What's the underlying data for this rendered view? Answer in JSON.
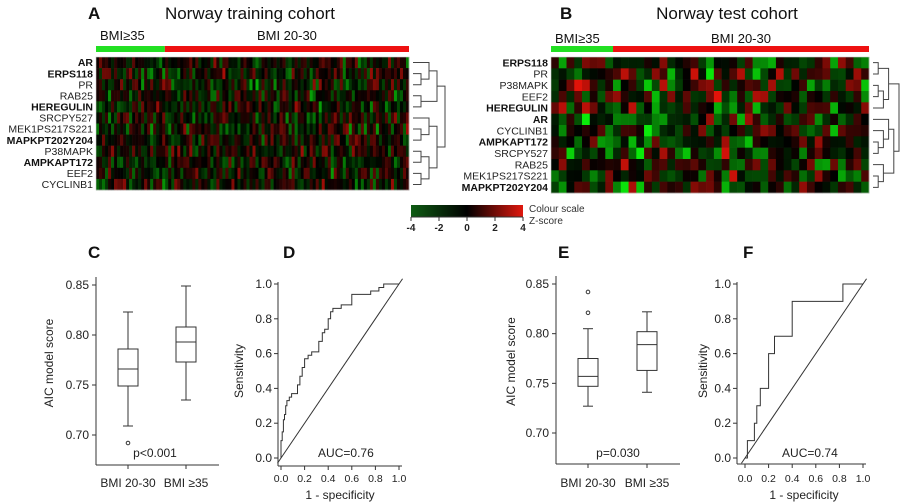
{
  "panels": {
    "A": {
      "letter": "A",
      "title": "Norway training cohort"
    },
    "B": {
      "letter": "B",
      "title": "Norway test cohort"
    },
    "C": {
      "letter": "C"
    },
    "D": {
      "letter": "D"
    },
    "E": {
      "letter": "E"
    },
    "F": {
      "letter": "F"
    }
  },
  "colour_scale": {
    "title": "Colour scale",
    "subtitle": "Z-score",
    "ticks": [
      "-4",
      "-2",
      "0",
      "2",
      "4"
    ],
    "range": [
      -4,
      4
    ],
    "low_color": "#0f5c14",
    "mid_color": "#000000",
    "high_color": "#e0180e"
  },
  "chart_data": [
    {
      "type": "heatmap",
      "panel": "A",
      "groups": [
        {
          "label": "BMI≥35",
          "color": "#22e022",
          "fraction": 0.22
        },
        {
          "label": "BMI 20-30",
          "color": "#ee1111",
          "fraction": 0.78
        }
      ],
      "rows": [
        {
          "label": "AR",
          "bold": true
        },
        {
          "label": "ERPS118",
          "bold": true
        },
        {
          "label": "PR",
          "bold": false
        },
        {
          "label": "RAB25",
          "bold": false
        },
        {
          "label": "HEREGULIN",
          "bold": true
        },
        {
          "label": "SRCPY527",
          "bold": false
        },
        {
          "label": "MEK1PS217S221",
          "bold": false
        },
        {
          "label": "MAPKPT202Y204",
          "bold": true
        },
        {
          "label": "P38MAPK",
          "bold": false
        },
        {
          "label": "AMPKAPT172",
          "bold": true
        },
        {
          "label": "EEF2",
          "bold": false
        },
        {
          "label": "CYCLINB1",
          "bold": false
        }
      ],
      "row_dendrogram": [
        [
          [
            0,
            [
              1,
              2
            ]
          ],
          [
            3,
            4
          ]
        ],
        [
          [
            5,
            [
              6,
              7
            ]
          ],
          [
            [
              8,
              9
            ],
            [
              10,
              11
            ]
          ]
        ]
      ]
    },
    {
      "type": "heatmap",
      "panel": "B",
      "groups": [
        {
          "label": "BMI≥35",
          "color": "#22e022",
          "fraction": 0.195
        },
        {
          "label": "BMI 20-30",
          "color": "#ee1111",
          "fraction": 0.805
        }
      ],
      "rows": [
        {
          "label": "ERPS118",
          "bold": true
        },
        {
          "label": "PR",
          "bold": false
        },
        {
          "label": "P38MAPK",
          "bold": false
        },
        {
          "label": "EEF2",
          "bold": false
        },
        {
          "label": "HEREGULIN",
          "bold": true
        },
        {
          "label": "AR",
          "bold": true
        },
        {
          "label": "CYCLINB1",
          "bold": false
        },
        {
          "label": "AMPKAPT172",
          "bold": true
        },
        {
          "label": "SRCPY527",
          "bold": false
        },
        {
          "label": "RAB25",
          "bold": false
        },
        {
          "label": "MEK1PS217S221",
          "bold": false
        },
        {
          "label": "MAPKPT202Y204",
          "bold": true
        }
      ],
      "row_dendrogram": [
        [
          [
            0,
            1
          ],
          [
            [
              2,
              3
            ],
            4
          ]
        ],
        [
          [
            5,
            [
              6,
              [
                7,
                8
              ]
            ]
          ],
          [
            9,
            [
              10,
              11
            ]
          ]
        ]
      ]
    },
    {
      "type": "box",
      "panel": "C",
      "ylabel": "AIC model score",
      "ylim": [
        0.67,
        0.855
      ],
      "yticks": [
        "0.70",
        "0.75",
        "0.80",
        "0.85"
      ],
      "annotation": "p<0.001",
      "groups": [
        {
          "label": "BMI 20-30",
          "min": 0.709,
          "q1": 0.749,
          "median": 0.766,
          "q3": 0.786,
          "max": 0.823,
          "outliers": [
            0.692
          ]
        },
        {
          "label": "BMI ≥35",
          "min": 0.735,
          "q1": 0.773,
          "median": 0.793,
          "q3": 0.808,
          "max": 0.849,
          "outliers": []
        }
      ]
    },
    {
      "type": "line",
      "panel": "D",
      "xlabel": "1 - specificity",
      "ylabel": "Sensitivity",
      "xlim": [
        0,
        1
      ],
      "ylim": [
        0,
        1
      ],
      "xticks": [
        "0.0",
        "0.2",
        "0.4",
        "0.6",
        "0.8",
        "1.0"
      ],
      "yticks": [
        "0.0",
        "0.2",
        "0.4",
        "0.6",
        "0.8",
        "1.0"
      ],
      "annotation": "AUC=0.76",
      "reference_diagonal": true,
      "roc": [
        [
          0,
          0
        ],
        [
          0,
          0.1
        ],
        [
          0.01,
          0.1
        ],
        [
          0.01,
          0.15
        ],
        [
          0.02,
          0.15
        ],
        [
          0.02,
          0.22
        ],
        [
          0.03,
          0.22
        ],
        [
          0.03,
          0.25
        ],
        [
          0.04,
          0.25
        ],
        [
          0.04,
          0.3
        ],
        [
          0.05,
          0.3
        ],
        [
          0.05,
          0.33
        ],
        [
          0.07,
          0.33
        ],
        [
          0.07,
          0.35
        ],
        [
          0.09,
          0.35
        ],
        [
          0.09,
          0.37
        ],
        [
          0.14,
          0.37
        ],
        [
          0.14,
          0.42
        ],
        [
          0.16,
          0.42
        ],
        [
          0.16,
          0.47
        ],
        [
          0.18,
          0.47
        ],
        [
          0.18,
          0.52
        ],
        [
          0.2,
          0.52
        ],
        [
          0.2,
          0.57
        ],
        [
          0.23,
          0.57
        ],
        [
          0.23,
          0.59
        ],
        [
          0.26,
          0.59
        ],
        [
          0.26,
          0.61
        ],
        [
          0.32,
          0.61
        ],
        [
          0.32,
          0.67
        ],
        [
          0.35,
          0.67
        ],
        [
          0.35,
          0.72
        ],
        [
          0.37,
          0.72
        ],
        [
          0.37,
          0.74
        ],
        [
          0.4,
          0.74
        ],
        [
          0.4,
          0.8
        ],
        [
          0.42,
          0.8
        ],
        [
          0.42,
          0.84
        ],
        [
          0.44,
          0.84
        ],
        [
          0.44,
          0.86
        ],
        [
          0.51,
          0.86
        ],
        [
          0.51,
          0.88
        ],
        [
          0.6,
          0.88
        ],
        [
          0.6,
          0.94
        ],
        [
          0.76,
          0.94
        ],
        [
          0.76,
          0.96
        ],
        [
          0.83,
          0.96
        ],
        [
          0.83,
          0.98
        ],
        [
          0.87,
          0.98
        ],
        [
          0.87,
          1.0
        ],
        [
          1,
          1
        ]
      ]
    },
    {
      "type": "box",
      "panel": "E",
      "ylabel": "AIC model score",
      "ylim": [
        0.67,
        0.855
      ],
      "yticks": [
        "0.70",
        "0.75",
        "0.80",
        "0.85"
      ],
      "annotation": "p=0.030",
      "groups": [
        {
          "label": "BMI 20-30",
          "min": 0.727,
          "q1": 0.747,
          "median": 0.757,
          "q3": 0.775,
          "max": 0.805,
          "outliers": [
            0.821,
            0.842
          ]
        },
        {
          "label": "BMI ≥35",
          "min": 0.741,
          "q1": 0.763,
          "median": 0.789,
          "q3": 0.802,
          "max": 0.822,
          "outliers": []
        }
      ]
    },
    {
      "type": "line",
      "panel": "F",
      "xlabel": "1 - specificity",
      "ylabel": "Sensitivity",
      "xlim": [
        0,
        1
      ],
      "ylim": [
        0,
        1
      ],
      "xticks": [
        "0.0",
        "0.2",
        "0.4",
        "0.6",
        "0.8",
        "1.0"
      ],
      "yticks": [
        "0.0",
        "0.2",
        "0.4",
        "0.6",
        "0.8",
        "1.0"
      ],
      "annotation": "AUC=0.74",
      "reference_diagonal": true,
      "roc": [
        [
          0,
          0
        ],
        [
          0.02,
          0
        ],
        [
          0.02,
          0.1
        ],
        [
          0.08,
          0.1
        ],
        [
          0.08,
          0.2
        ],
        [
          0.1,
          0.2
        ],
        [
          0.1,
          0.3
        ],
        [
          0.13,
          0.3
        ],
        [
          0.13,
          0.4
        ],
        [
          0.2,
          0.4
        ],
        [
          0.2,
          0.6
        ],
        [
          0.25,
          0.6
        ],
        [
          0.25,
          0.7
        ],
        [
          0.4,
          0.7
        ],
        [
          0.4,
          0.9
        ],
        [
          0.83,
          0.9
        ],
        [
          0.83,
          1.0
        ],
        [
          1,
          1
        ]
      ]
    }
  ]
}
